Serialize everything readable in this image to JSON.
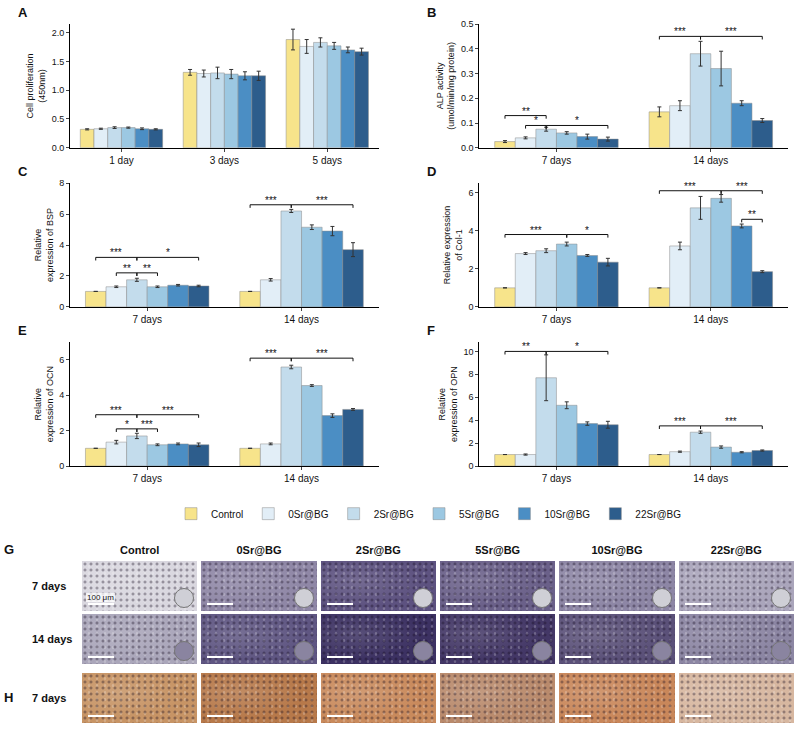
{
  "chart_data": [
    {
      "panel": "A",
      "type": "bar",
      "y_label": "Cell proliferation (450nm)",
      "legend": "bottom",
      "categories": [
        "1 day",
        "3 days",
        "5 days"
      ],
      "series": [
        {
          "name": "Control",
          "color": "#f7e48b",
          "values": [
            0.32,
            1.31,
            1.88
          ],
          "errors": [
            0.01,
            0.05,
            0.18
          ]
        },
        {
          "name": "0Sr@BG",
          "color": "#e2eef7",
          "values": [
            0.33,
            1.29,
            1.76
          ],
          "errors": [
            0.01,
            0.06,
            0.12
          ]
        },
        {
          "name": "2Sr@BG",
          "color": "#c3dcec",
          "values": [
            0.35,
            1.3,
            1.83
          ],
          "errors": [
            0.015,
            0.1,
            0.08
          ]
        },
        {
          "name": "5Sr@BG",
          "color": "#9cc8e2",
          "values": [
            0.35,
            1.28,
            1.77
          ],
          "errors": [
            0.01,
            0.08,
            0.06
          ]
        },
        {
          "name": "10Sr@BG",
          "color": "#4b8ec4",
          "values": [
            0.33,
            1.25,
            1.7
          ],
          "errors": [
            0.015,
            0.07,
            0.05
          ]
        },
        {
          "name": "22Sr@BG",
          "color": "#2d5d8c",
          "values": [
            0.32,
            1.25,
            1.67
          ],
          "errors": [
            0.01,
            0.08,
            0.06
          ]
        }
      ],
      "ylim": [
        0,
        2.15
      ],
      "yticks": [
        {
          "value": 0,
          "label": "0.0"
        },
        0.5,
        {
          "value": 1,
          "label": "1.0"
        },
        1.5,
        {
          "value": 2,
          "label": "2.0"
        }
      ],
      "significance": []
    },
    {
      "panel": "B",
      "type": "bar",
      "y_label": "ALP activity (umol/min/mg protein)",
      "categories": [
        "7 days",
        "14 days"
      ],
      "series": [
        {
          "name": "Control",
          "color": "#f7e48b",
          "values": [
            0.025,
            0.145
          ],
          "errors": [
            0.004,
            0.02
          ]
        },
        {
          "name": "0Sr@BG",
          "color": "#e2eef7",
          "values": [
            0.04,
            0.17
          ],
          "errors": [
            0.004,
            0.02
          ]
        },
        {
          "name": "2Sr@BG",
          "color": "#c3dcec",
          "values": [
            0.075,
            0.38
          ],
          "errors": [
            0.008,
            0.05
          ]
        },
        {
          "name": "5Sr@BG",
          "color": "#9cc8e2",
          "values": [
            0.06,
            0.32
          ],
          "errors": [
            0.005,
            0.07
          ]
        },
        {
          "name": "10Sr@BG",
          "color": "#4b8ec4",
          "values": [
            0.045,
            0.18
          ],
          "errors": [
            0.01,
            0.01
          ]
        },
        {
          "name": "22Sr@BG",
          "color": "#2d5d8c",
          "values": [
            0.035,
            0.11
          ],
          "errors": [
            0.008,
            0.008
          ]
        }
      ],
      "ylim": [
        0,
        0.5
      ],
      "yticks": [
        {
          "value": 0,
          "label": "0.0"
        },
        0.1,
        0.2,
        0.3,
        0.4,
        0.5
      ],
      "significance": [
        {
          "category": "7 days",
          "from": "Control",
          "to": "2Sr@BG",
          "label": "**",
          "y": 0.13
        },
        {
          "category": "7 days",
          "from": "0Sr@BG",
          "to": "2Sr@BG",
          "label": "*",
          "y": 0.09
        },
        {
          "category": "7 days",
          "from": "2Sr@BG",
          "to": "22Sr@BG",
          "label": "*",
          "y": 0.09
        },
        {
          "category": "14 days",
          "from": "Control",
          "to": "2Sr@BG",
          "label": "***",
          "y": 0.45
        },
        {
          "category": "14 days",
          "from": "2Sr@BG",
          "to": "22Sr@BG",
          "label": "***",
          "y": 0.45
        }
      ]
    },
    {
      "panel": "C",
      "type": "bar",
      "y_label": "Relative expression of BSP",
      "categories": [
        "7 days",
        "14 days"
      ],
      "series": [
        {
          "name": "Control",
          "color": "#f7e48b",
          "values": [
            1,
            1
          ],
          "errors": [
            0,
            0
          ]
        },
        {
          "name": "0Sr@BG",
          "color": "#e2eef7",
          "values": [
            1.3,
            1.75
          ],
          "errors": [
            0.05,
            0.08
          ]
        },
        {
          "name": "2Sr@BG",
          "color": "#c3dcec",
          "values": [
            1.75,
            6.2
          ],
          "errors": [
            0.1,
            0.1
          ]
        },
        {
          "name": "5Sr@BG",
          "color": "#9cc8e2",
          "values": [
            1.3,
            5.15
          ],
          "errors": [
            0.05,
            0.15
          ]
        },
        {
          "name": "10Sr@BG",
          "color": "#4b8ec4",
          "values": [
            1.4,
            4.9
          ],
          "errors": [
            0.05,
            0.3
          ]
        },
        {
          "name": "22Sr@BG",
          "color": "#2d5d8c",
          "values": [
            1.35,
            3.7
          ],
          "errors": [
            0.05,
            0.45
          ]
        }
      ],
      "ylim": [
        0,
        8
      ],
      "yticks": [
        0,
        2,
        4,
        6,
        8
      ],
      "significance": [
        {
          "category": "7 days",
          "from": "Control",
          "to": "2Sr@BG",
          "label": "***",
          "y": 3.2
        },
        {
          "category": "7 days",
          "from": "2Sr@BG",
          "to": "22Sr@BG",
          "label": "*",
          "y": 3.2
        },
        {
          "category": "7 days",
          "from": "0Sr@BG",
          "to": "2Sr@BG",
          "label": "**",
          "y": 2.2
        },
        {
          "category": "7 days",
          "from": "2Sr@BG",
          "to": "5Sr@BG",
          "label": "**",
          "y": 2.2
        },
        {
          "category": "14 days",
          "from": "Control",
          "to": "2Sr@BG",
          "label": "***",
          "y": 6.6
        },
        {
          "category": "14 days",
          "from": "2Sr@BG",
          "to": "22Sr@BG",
          "label": "***",
          "y": 6.6
        }
      ]
    },
    {
      "panel": "D",
      "type": "bar",
      "y_label": "Relative expression of Col-1",
      "categories": [
        "7 days",
        "14 days"
      ],
      "series": [
        {
          "name": "Control",
          "color": "#f7e48b",
          "values": [
            1,
            1
          ],
          "errors": [
            0,
            0
          ]
        },
        {
          "name": "0Sr@BG",
          "color": "#e2eef7",
          "values": [
            2.8,
            3.2
          ],
          "errors": [
            0.05,
            0.2
          ]
        },
        {
          "name": "2Sr@BG",
          "color": "#c3dcec",
          "values": [
            2.95,
            5.2
          ],
          "errors": [
            0.1,
            0.6
          ]
        },
        {
          "name": "5Sr@BG",
          "color": "#9cc8e2",
          "values": [
            3.3,
            5.7
          ],
          "errors": [
            0.1,
            0.2
          ]
        },
        {
          "name": "10Sr@BG",
          "color": "#4b8ec4",
          "values": [
            2.7,
            4.25
          ],
          "errors": [
            0.05,
            0.1
          ]
        },
        {
          "name": "22Sr@BG",
          "color": "#2d5d8c",
          "values": [
            2.35,
            1.85
          ],
          "errors": [
            0.2,
            0.05
          ]
        }
      ],
      "ylim": [
        0,
        6.5
      ],
      "yticks": [
        0,
        2,
        4,
        6
      ],
      "significance": [
        {
          "category": "7 days",
          "from": "Control",
          "to": "5Sr@BG",
          "label": "***",
          "y": 3.8
        },
        {
          "category": "7 days",
          "from": "5Sr@BG",
          "to": "22Sr@BG",
          "label": "*",
          "y": 3.8
        },
        {
          "category": "14 days",
          "from": "Control",
          "to": "5Sr@BG",
          "label": "***",
          "y": 6.1
        },
        {
          "category": "14 days",
          "from": "5Sr@BG",
          "to": "22Sr@BG",
          "label": "***",
          "y": 6.1
        },
        {
          "category": "14 days",
          "from": "10Sr@BG",
          "to": "22Sr@BG",
          "label": "**",
          "y": 4.6
        }
      ]
    },
    {
      "panel": "E",
      "type": "bar",
      "y_label": "Relative expression of OCN",
      "categories": [
        "7 days",
        "14 days"
      ],
      "series": [
        {
          "name": "Control",
          "color": "#f7e48b",
          "values": [
            1,
            1
          ],
          "errors": [
            0,
            0
          ]
        },
        {
          "name": "0Sr@BG",
          "color": "#e2eef7",
          "values": [
            1.35,
            1.25
          ],
          "errors": [
            0.1,
            0.05
          ]
        },
        {
          "name": "2Sr@BG",
          "color": "#c3dcec",
          "values": [
            1.7,
            5.6
          ],
          "errors": [
            0.15,
            0.1
          ]
        },
        {
          "name": "5Sr@BG",
          "color": "#9cc8e2",
          "values": [
            1.2,
            4.55
          ],
          "errors": [
            0.05,
            0.05
          ]
        },
        {
          "name": "10Sr@BG",
          "color": "#4b8ec4",
          "values": [
            1.25,
            2.85
          ],
          "errors": [
            0.05,
            0.1
          ]
        },
        {
          "name": "22Sr@BG",
          "color": "#2d5d8c",
          "values": [
            1.2,
            3.2
          ],
          "errors": [
            0.1,
            0.05
          ]
        }
      ],
      "ylim": [
        0,
        7
      ],
      "yticks": [
        0,
        2,
        4,
        6
      ],
      "significance": [
        {
          "category": "7 days",
          "from": "Control",
          "to": "2Sr@BG",
          "label": "***",
          "y": 2.9
        },
        {
          "category": "7 days",
          "from": "2Sr@BG",
          "to": "22Sr@BG",
          "label": "***",
          "y": 2.9
        },
        {
          "category": "7 days",
          "from": "0Sr@BG",
          "to": "2Sr@BG",
          "label": "*",
          "y": 2.1
        },
        {
          "category": "7 days",
          "from": "2Sr@BG",
          "to": "5Sr@BG",
          "label": "***",
          "y": 2.1
        },
        {
          "category": "14 days",
          "from": "Control",
          "to": "2Sr@BG",
          "label": "***",
          "y": 6.1
        },
        {
          "category": "14 days",
          "from": "2Sr@BG",
          "to": "22Sr@BG",
          "label": "***",
          "y": 6.1
        }
      ]
    },
    {
      "panel": "F",
      "type": "bar",
      "y_label": "Relative expression of OPN",
      "categories": [
        "7 days",
        "14 days"
      ],
      "series": [
        {
          "name": "Control",
          "color": "#f7e48b",
          "values": [
            1,
            1
          ],
          "errors": [
            0,
            0
          ]
        },
        {
          "name": "0Sr@BG",
          "color": "#e2eef7",
          "values": [
            1,
            1.25
          ],
          "errors": [
            0.05,
            0.05
          ]
        },
        {
          "name": "2Sr@BG",
          "color": "#c3dcec",
          "values": [
            7.7,
            2.95
          ],
          "errors": [
            2.0,
            0.1
          ]
        },
        {
          "name": "5Sr@BG",
          "color": "#9cc8e2",
          "values": [
            5.3,
            1.65
          ],
          "errors": [
            0.3,
            0.1
          ]
        },
        {
          "name": "10Sr@BG",
          "color": "#4b8ec4",
          "values": [
            3.7,
            1.2
          ],
          "errors": [
            0.15,
            0.05
          ]
        },
        {
          "name": "22Sr@BG",
          "color": "#2d5d8c",
          "values": [
            3.6,
            1.35
          ],
          "errors": [
            0.3,
            0.05
          ]
        }
      ],
      "ylim": [
        0,
        10.8
      ],
      "yticks": [
        0,
        2,
        4,
        6,
        8,
        10
      ],
      "significance": [
        {
          "category": "7 days",
          "from": "Control",
          "to": "2Sr@BG",
          "label": "**",
          "y": 10.0
        },
        {
          "category": "7 days",
          "from": "2Sr@BG",
          "to": "22Sr@BG",
          "label": "*",
          "y": 10.0
        },
        {
          "category": "14 days",
          "from": "Control",
          "to": "2Sr@BG",
          "label": "***",
          "y": 3.5
        },
        {
          "category": "14 days",
          "from": "2Sr@BG",
          "to": "22Sr@BG",
          "label": "***",
          "y": 3.5
        }
      ]
    }
  ],
  "micrographs": [
    {
      "panel": "G",
      "columns": [
        "Control",
        "0Sr@BG",
        "2Sr@BG",
        "5Sr@BG",
        "10Sr@BG",
        "22Sr@BG"
      ],
      "rows": [
        "7 days",
        "14 days"
      ],
      "scale_bar": "100 μm"
    },
    {
      "panel": "H",
      "rows": [
        "7 days"
      ]
    }
  ]
}
